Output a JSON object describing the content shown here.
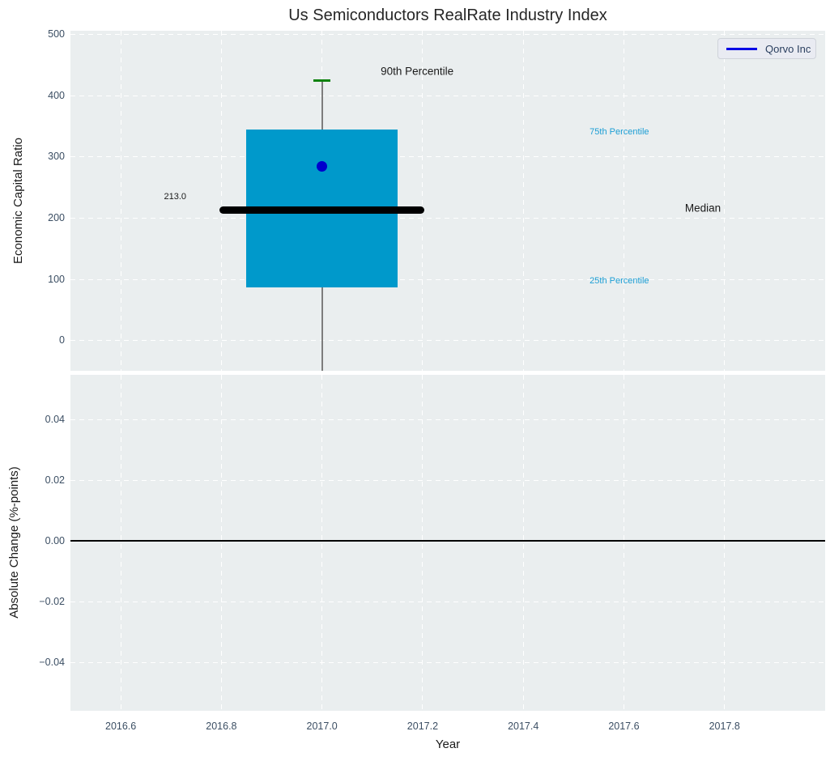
{
  "figure": {
    "title": "Us Semiconductors RealRate Industry Index",
    "xlabel": "Year",
    "legend": {
      "label": "Qorvo Inc",
      "line_color": "#0000e6"
    },
    "colors": {
      "plot_bg": "#eaeeef",
      "grid": "#ffffff",
      "tick_text": "#3b4e63",
      "box_fill": "#0099cb",
      "median_line": "#000000",
      "whisker": "#7d7d7d",
      "cap_90th": "#0e820e",
      "company_dot": "#0000cd",
      "percentile_label_blue": "#1c9ed4",
      "annotation_black": "#1a1a1a",
      "zero_line": "#000000"
    }
  },
  "chart_data": [
    {
      "type": "box",
      "title": "Us Semiconductors RealRate Industry Index",
      "ylabel": "Economic Capital Ratio",
      "xlabel": "Year",
      "legend_entries": [
        "Qorvo Inc"
      ],
      "legend_position": "top-right",
      "grid": true,
      "xlim": [
        2016.5,
        2018.0
      ],
      "ylim": [
        -49,
        506
      ],
      "yticks": [
        {
          "v": 0,
          "label": "0"
        },
        {
          "v": 100,
          "label": "100"
        },
        {
          "v": 200,
          "label": "200"
        },
        {
          "v": 300,
          "label": "300"
        },
        {
          "v": 400,
          "label": "400"
        },
        {
          "v": 500,
          "label": "500"
        }
      ],
      "xticks": [
        {
          "v": 2016.6,
          "label": "2016.6"
        },
        {
          "v": 2016.8,
          "label": "2016.8"
        },
        {
          "v": 2017.0,
          "label": "2017.0"
        },
        {
          "v": 2017.2,
          "label": "2017.2"
        },
        {
          "v": 2017.4,
          "label": "2017.4"
        },
        {
          "v": 2017.6,
          "label": "2017.6"
        },
        {
          "v": 2017.8,
          "label": "2017.8"
        }
      ],
      "box": {
        "x": 2017.0,
        "p90": 425,
        "p75": 345,
        "median": 213.0,
        "p25": 87,
        "whisker_low": -49,
        "company_value": 285,
        "box_half_width": 0.1505,
        "median_half_width": 0.2035,
        "cap_half_width": 0.017
      },
      "annotations": [
        {
          "text": "90th Percentile",
          "x": 2017.189,
          "y": 440,
          "color_key": "annotation_black",
          "size": "large"
        },
        {
          "text": "213.0",
          "x": 2016.708,
          "y": 235,
          "color_key": "annotation_black",
          "size": "small"
        },
        {
          "text": "75th Percentile",
          "x": 2017.591,
          "y": 341,
          "color_key": "percentile_label_blue",
          "size": "small"
        },
        {
          "text": "Median",
          "x": 2017.757,
          "y": 217,
          "color_key": "annotation_black",
          "size": "large"
        },
        {
          "text": "25th Percentile",
          "x": 2017.591,
          "y": 98,
          "color_key": "percentile_label_blue",
          "size": "small"
        }
      ]
    },
    {
      "type": "line",
      "ylabel": "Absolute Change (%-points)",
      "grid": true,
      "xlim": [
        2016.5,
        2018.0
      ],
      "ylim": [
        -0.056,
        0.0547
      ],
      "series": [],
      "zero_line": 0.0,
      "yticks": [
        {
          "v": -0.04,
          "label": "−0.04"
        },
        {
          "v": -0.02,
          "label": "−0.02"
        },
        {
          "v": 0.0,
          "label": "0.00"
        },
        {
          "v": 0.02,
          "label": "0.02"
        },
        {
          "v": 0.04,
          "label": "0.04"
        }
      ]
    }
  ]
}
